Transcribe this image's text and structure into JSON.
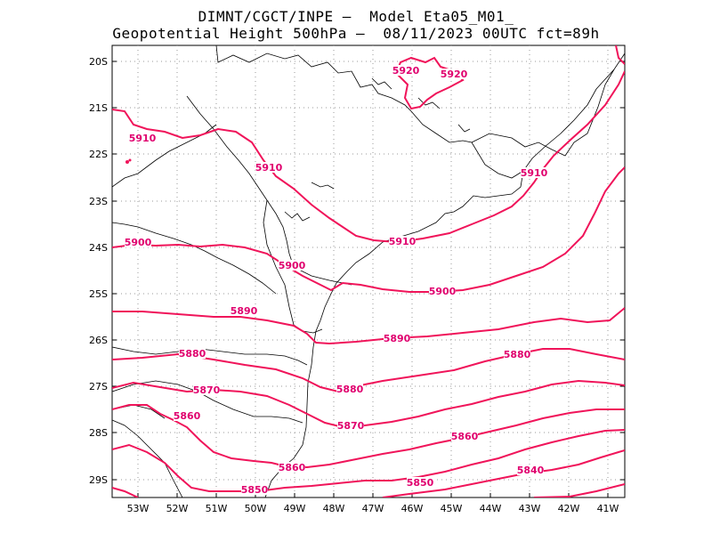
{
  "title": {
    "line1": "DIMNT/CGCT/INPE –  Model Eta05_M01_",
    "line2": "Geopotential Height 500hPa –  08/11/2023 00UTC fct=89h"
  },
  "axes": {
    "lat_labels": [
      "20S",
      "21S",
      "22S",
      "23S",
      "24S",
      "25S",
      "26S",
      "27S",
      "28S",
      "29S"
    ],
    "lon_labels": [
      "53W",
      "52W",
      "51W",
      "50W",
      "49W",
      "48W",
      "47W",
      "46W",
      "45W",
      "44W",
      "43W",
      "42W",
      "41W"
    ]
  },
  "contour_color": "#f0145a",
  "label_color": "#e0006e",
  "contours": [
    {
      "value": "5920",
      "labels": [
        "5920",
        "5920"
      ]
    },
    {
      "value": "5910",
      "labels": [
        "5910",
        "5910",
        "5910",
        "5910"
      ]
    },
    {
      "value": "5900",
      "labels": [
        "5900",
        "5900",
        "5900"
      ]
    },
    {
      "value": "5890",
      "labels": [
        "5890",
        "5890"
      ]
    },
    {
      "value": "5880",
      "labels": [
        "5880",
        "5880",
        "5880"
      ]
    },
    {
      "value": "5870",
      "labels": [
        "5870",
        "5870"
      ]
    },
    {
      "value": "5860",
      "labels": [
        "5860",
        "5860",
        "5860"
      ]
    },
    {
      "value": "5850",
      "labels": [
        "5850",
        "5850"
      ]
    },
    {
      "value": "5840",
      "labels": [
        "5840"
      ]
    }
  ]
}
